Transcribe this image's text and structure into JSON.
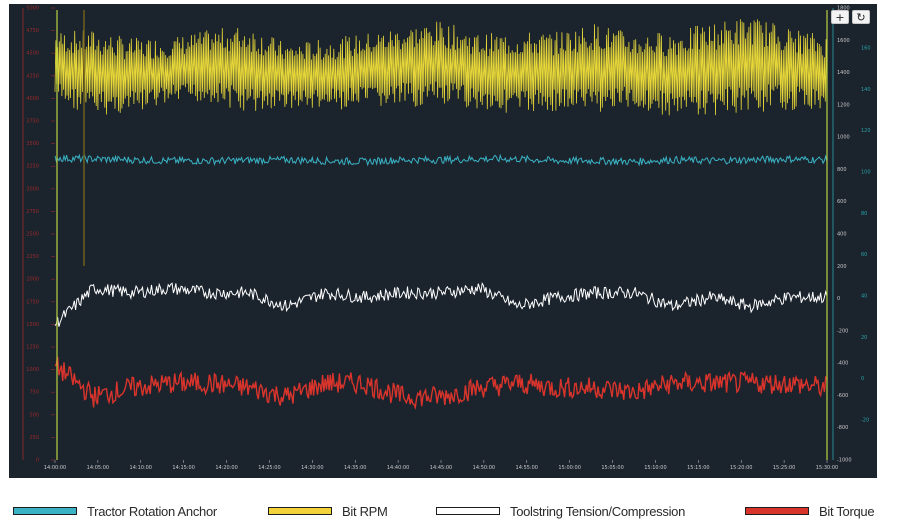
{
  "toolbar": {
    "zoom_in_icon": "plus-icon",
    "zoom_in_glyph": "+",
    "reset_icon": "refresh-icon",
    "reset_glyph": "↻"
  },
  "legend": [
    {
      "label": "Tractor Rotation Anchor",
      "color": "#3ab3c4"
    },
    {
      "label": "Bit RPM",
      "color": "#f2d33a"
    },
    {
      "label": "Toolstring Tension/Compression",
      "color": "#ffffff"
    },
    {
      "label": "Bit Torque",
      "color": "#d9342b"
    }
  ],
  "colors": {
    "background": "#1b232d",
    "left_axis": "#9a2a2a",
    "right_axis": "#2aa3a8",
    "rpm_line": "#f2e23a",
    "cursor_line": "#b8d043"
  },
  "chart_data": {
    "type": "line",
    "title": "",
    "grid": false,
    "legend_position": "bottom",
    "x": {
      "ticks": [
        "14:00:00",
        "14:05:00",
        "14:10:00",
        "14:15:00",
        "14:20:00",
        "14:25:00",
        "14:30:00",
        "14:35:00",
        "14:40:00",
        "14:45:00",
        "14:50:00",
        "14:55:00",
        "15:00:00",
        "15:05:00",
        "15:10:00",
        "15:15:00",
        "15:20:00",
        "15:25:00",
        "15:30:00"
      ],
      "range": [
        "14:00:00",
        "15:30:00"
      ]
    },
    "y_left": {
      "range": [
        0,
        5000
      ],
      "ticks": [
        0,
        250,
        500,
        750,
        1000,
        1250,
        1500,
        1750,
        2000,
        2250,
        2500,
        2750,
        3000,
        3250,
        3500,
        3750,
        4000,
        4250,
        4500,
        4750,
        5000
      ]
    },
    "y_right_outer": {
      "range": [
        -1000,
        1800
      ],
      "ticks": [
        -1000,
        -800,
        -600,
        -400,
        -200,
        0,
        200,
        400,
        600,
        800,
        1000,
        1200,
        1400,
        1600,
        1800
      ]
    },
    "y_right_inner": {
      "range": [
        -20,
        160
      ],
      "ticks": [
        -20,
        0,
        20,
        40,
        60,
        80,
        100,
        120,
        140,
        160
      ]
    },
    "series": [
      {
        "name": "Bit RPM",
        "axis": "left",
        "style": "band",
        "values_center": [
          4350,
          4280,
          4250,
          4300,
          4360,
          4320,
          4250,
          4260,
          4300,
          4350,
          4380,
          4300,
          4280,
          4300,
          4340,
          4300,
          4270,
          4320,
          4380,
          4330,
          4280
        ],
        "amplitude": [
          400,
          480,
          420,
          380,
          400,
          500,
          360,
          400,
          420,
          450,
          480,
          420,
          460,
          440,
          500,
          420,
          480,
          520,
          540,
          460,
          420
        ]
      },
      {
        "name": "Tractor Rotation Anchor",
        "axis": "left",
        "values": [
          3340,
          3330,
          3320,
          3310,
          3310,
          3315,
          3320,
          3310,
          3300,
          3320,
          3320,
          3330,
          3330,
          3310,
          3310,
          3300,
          3320,
          3310,
          3320,
          3330,
          3320
        ]
      },
      {
        "name": "Toolstring Tension/Compression",
        "axis": "left",
        "values": [
          1500,
          1900,
          1850,
          1900,
          1850,
          1850,
          1700,
          1850,
          1800,
          1850,
          1850,
          1900,
          1700,
          1800,
          1850,
          1850,
          1700,
          1800,
          1700,
          1800,
          1800
        ]
      },
      {
        "name": "Bit Torque",
        "axis": "left",
        "values": [
          1050,
          700,
          800,
          850,
          850,
          800,
          700,
          850,
          850,
          700,
          700,
          800,
          850,
          800,
          800,
          750,
          850,
          850,
          850,
          850,
          800
        ]
      }
    ]
  }
}
